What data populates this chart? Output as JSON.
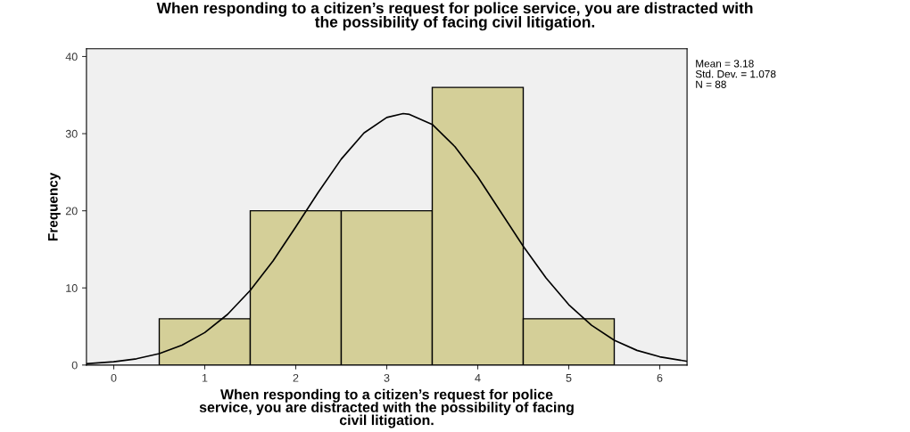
{
  "chart_data": {
    "type": "histogram",
    "title": "When responding to a citizen’s request for police service, you are distracted with\nthe possibility of facing civil litigation.",
    "xlabel": "When responding to a citizen’s request for police\nservice, you are distracted with the possibility of facing\ncivil litigation.",
    "ylabel": "Frequency",
    "bins": [
      0.5,
      1.5,
      2.5,
      3.5,
      4.5,
      5.5
    ],
    "values": [
      6,
      20,
      20,
      36,
      6
    ],
    "color": "#d4cf98",
    "series": [
      {
        "type": "line",
        "color": "#000000",
        "x": [
          -0.3,
          0,
          0.25,
          0.5,
          0.75,
          1,
          1.25,
          1.5,
          1.75,
          2,
          2.25,
          2.5,
          2.75,
          3,
          3.18,
          3.25,
          3.5,
          3.75,
          4,
          4.25,
          4.5,
          4.75,
          5,
          5.25,
          5.5,
          5.75,
          6,
          6.3
        ],
        "values": [
          0.18,
          0.42,
          0.81,
          1.48,
          2.57,
          4.21,
          6.56,
          9.68,
          13.5,
          17.9,
          22.45,
          26.7,
          30.1,
          32.1,
          32.6,
          32.5,
          31.2,
          28.3,
          24.4,
          19.9,
          15.4,
          11.3,
          7.83,
          5.16,
          3.21,
          1.9,
          1.07,
          0.49
        ]
      }
    ],
    "xlim": [
      -0.3,
      6.3
    ],
    "xticks": [
      0,
      1,
      2,
      3,
      4,
      5,
      6
    ],
    "ylim": [
      0,
      41
    ],
    "yticks": [
      0,
      10,
      20,
      30,
      40
    ],
    "grid": false,
    "legend": false,
    "annotations": [
      "Mean = 3.18",
      "Std. Dev. = 1.078",
      "N = 88"
    ]
  }
}
